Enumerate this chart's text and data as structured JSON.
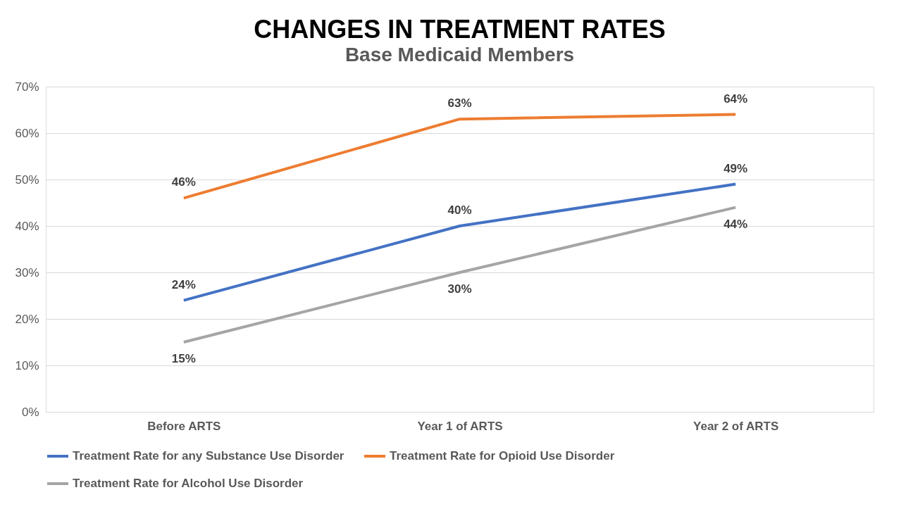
{
  "chart_data": {
    "type": "line",
    "title": "CHANGES IN TREATMENT RATES",
    "subtitle": "Base Medicaid Members",
    "categories": [
      "Before ARTS",
      "Year 1 of ARTS",
      "Year 2 of ARTS"
    ],
    "series": [
      {
        "name": "Treatment Rate for any Substance Use Disorder",
        "color": "#4472c4",
        "values": [
          24,
          40,
          49
        ],
        "value_labels": [
          "24%",
          "40%",
          "49%"
        ]
      },
      {
        "name": "Treatment Rate for Opioid Use Disorder",
        "color": "#ed7d31",
        "values": [
          46,
          63,
          64
        ],
        "value_labels": [
          "46%",
          "63%",
          "64%"
        ]
      },
      {
        "name": "Treatment Rate for Alcohol Use Disorder",
        "color": "#a5a5a5",
        "values": [
          15,
          30,
          44
        ],
        "value_labels": [
          "15%",
          "30%",
          "44%"
        ]
      }
    ],
    "ylim": [
      0,
      70
    ],
    "yticks": [
      {
        "value": 0,
        "label": "0%"
      },
      {
        "value": 10,
        "label": "10%"
      },
      {
        "value": 20,
        "label": "20%"
      },
      {
        "value": 30,
        "label": "30%"
      },
      {
        "value": 40,
        "label": "40%"
      },
      {
        "value": 50,
        "label": "50%"
      },
      {
        "value": 60,
        "label": "60%"
      },
      {
        "value": 70,
        "label": "70%"
      }
    ],
    "grid": "y",
    "legend": "bottom",
    "marker": "none",
    "line_style": "solid"
  }
}
